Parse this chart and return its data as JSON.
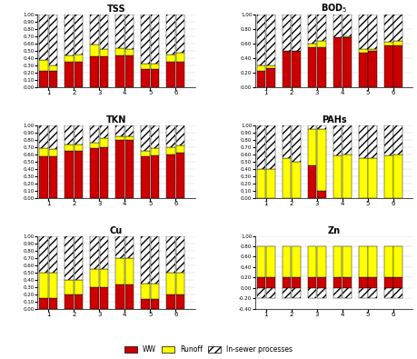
{
  "subplots": [
    {
      "title": "TSS",
      "ww": [
        0.22,
        0.22,
        0.35,
        0.35,
        0.42,
        0.42,
        0.44,
        0.44,
        0.25,
        0.25,
        0.35,
        0.35
      ],
      "runoff": [
        0.16,
        0.08,
        0.08,
        0.1,
        0.17,
        0.1,
        0.1,
        0.08,
        0.08,
        0.07,
        0.1,
        0.12
      ],
      "insewer": [
        0.62,
        0.7,
        0.57,
        0.55,
        0.41,
        0.48,
        0.46,
        0.48,
        0.67,
        0.68,
        0.55,
        0.53
      ],
      "ylim": [
        0.0,
        1.0
      ],
      "ytick_min": 0.0,
      "ytick_max": 1.0,
      "ytick_step": 0.1
    },
    {
      "title": "BOD$_5$",
      "ww": [
        0.23,
        0.26,
        0.5,
        0.5,
        0.55,
        0.55,
        0.68,
        0.68,
        0.47,
        0.5,
        0.57,
        0.57
      ],
      "runoff": [
        0.07,
        0.04,
        0.0,
        0.0,
        0.05,
        0.08,
        0.0,
        0.02,
        0.05,
        0.02,
        0.05,
        0.07
      ],
      "insewer": [
        0.7,
        0.7,
        0.5,
        0.5,
        0.4,
        0.37,
        0.32,
        0.3,
        0.48,
        0.48,
        0.38,
        0.36
      ],
      "ylim": [
        0.0,
        1.0
      ],
      "ytick_min": 0.0,
      "ytick_max": 1.0,
      "ytick_step": 0.2
    },
    {
      "title": "TKN",
      "ww": [
        0.57,
        0.57,
        0.65,
        0.65,
        0.68,
        0.7,
        0.8,
        0.8,
        0.57,
        0.58,
        0.6,
        0.62
      ],
      "runoff": [
        0.12,
        0.1,
        0.08,
        0.08,
        0.08,
        0.12,
        0.04,
        0.05,
        0.08,
        0.1,
        0.1,
        0.1
      ],
      "insewer": [
        0.31,
        0.33,
        0.27,
        0.27,
        0.24,
        0.18,
        0.16,
        0.15,
        0.35,
        0.32,
        0.3,
        0.28
      ],
      "ylim": [
        0.0,
        1.0
      ],
      "ytick_min": 0.0,
      "ytick_max": 1.0,
      "ytick_step": 0.1
    },
    {
      "title": "PAHs",
      "ww": [
        0.0,
        0.0,
        0.0,
        0.0,
        0.45,
        0.1,
        0.0,
        0.0,
        0.0,
        0.0,
        0.0,
        0.0
      ],
      "runoff": [
        0.4,
        0.4,
        0.55,
        0.5,
        0.5,
        0.85,
        0.58,
        0.6,
        0.55,
        0.55,
        0.58,
        0.6
      ],
      "insewer": [
        0.6,
        0.6,
        0.45,
        0.5,
        0.05,
        0.05,
        0.42,
        0.4,
        0.45,
        0.45,
        0.42,
        0.4
      ],
      "ylim": [
        0.0,
        1.0
      ],
      "ytick_min": 0.0,
      "ytick_max": 1.0,
      "ytick_step": 0.1
    },
    {
      "title": "Cu",
      "ww": [
        0.15,
        0.15,
        0.2,
        0.2,
        0.3,
        0.3,
        0.33,
        0.33,
        0.13,
        0.13,
        0.2,
        0.2
      ],
      "runoff": [
        0.35,
        0.35,
        0.2,
        0.2,
        0.25,
        0.25,
        0.37,
        0.37,
        0.22,
        0.22,
        0.3,
        0.3
      ],
      "insewer": [
        0.5,
        0.5,
        0.6,
        0.6,
        0.45,
        0.45,
        0.3,
        0.3,
        0.65,
        0.65,
        0.5,
        0.5
      ],
      "ylim": [
        0.0,
        1.0
      ],
      "ytick_min": 0.0,
      "ytick_max": 1.0,
      "ytick_step": 0.1
    },
    {
      "title": "Zn",
      "ww": [
        0.2,
        0.2,
        0.2,
        0.2,
        0.2,
        0.2,
        0.2,
        0.2,
        0.2,
        0.2,
        0.2,
        0.2
      ],
      "runoff": [
        0.6,
        0.6,
        0.6,
        0.6,
        0.6,
        0.6,
        0.6,
        0.6,
        0.6,
        0.6,
        0.6,
        0.6
      ],
      "insewer": [
        -0.2,
        -0.2,
        -0.2,
        -0.2,
        -0.2,
        -0.2,
        -0.2,
        -0.2,
        -0.2,
        -0.2,
        -0.2,
        -0.2
      ],
      "ylim": [
        -0.4,
        1.0
      ],
      "ytick_min": -0.4,
      "ytick_max": 1.0,
      "ytick_step": 0.2
    }
  ],
  "colors": {
    "ww": "#CC0000",
    "runoff": "#FFFF00"
  },
  "n_bars": 12,
  "n_pairs": 6,
  "pair_labels": [
    "1",
    "2",
    "3",
    "4",
    "5",
    "6"
  ]
}
